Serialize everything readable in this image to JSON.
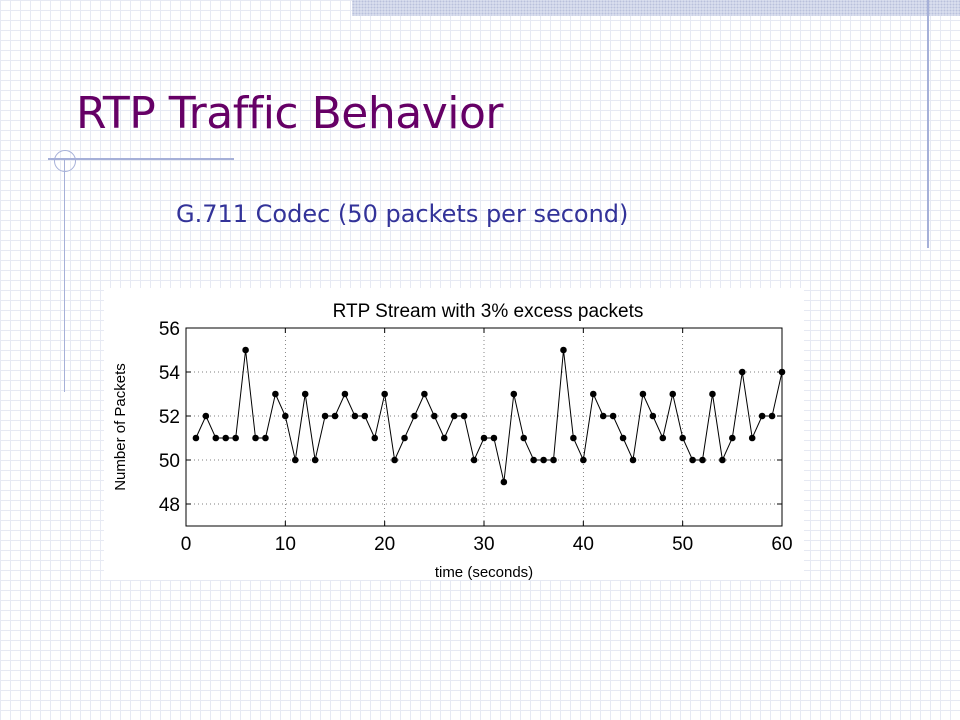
{
  "slide": {
    "title": "RTP Traffic Behavior",
    "subtitle": "G.711 Codec (50 packets per second)"
  },
  "colors": {
    "title": "#660066",
    "subtitle": "#333399",
    "decoration": "#a6b0d8",
    "grid_pattern": "#e6e9f3"
  },
  "chart_data": {
    "type": "line",
    "title": "RTP Stream with 3% excess packets",
    "xlabel": "time (seconds)",
    "ylabel": "Number of Packets",
    "xlim": [
      0,
      60
    ],
    "ylim": [
      47,
      56
    ],
    "xticks": [
      0,
      10,
      20,
      30,
      40,
      50,
      60
    ],
    "yticks": [
      48,
      50,
      52,
      54,
      56
    ],
    "grid": true,
    "legend": "none",
    "series": [
      {
        "marker": "circle",
        "color": "#000000",
        "x": [
          1,
          2,
          3,
          4,
          5,
          6,
          7,
          8,
          9,
          10,
          11,
          12,
          13,
          14,
          15,
          16,
          17,
          18,
          19,
          20,
          21,
          22,
          23,
          24,
          25,
          26,
          27,
          28,
          29,
          30,
          31,
          32,
          33,
          34,
          35,
          36,
          37,
          38,
          39,
          40,
          41,
          42,
          43,
          44,
          45,
          46,
          47,
          48,
          49,
          50,
          51,
          52,
          53,
          54,
          55,
          56,
          57,
          58,
          59,
          60
        ],
        "y": [
          51,
          52,
          51,
          51,
          51,
          55,
          51,
          51,
          53,
          52,
          50,
          53,
          50,
          52,
          52,
          53,
          52,
          52,
          51,
          53,
          50,
          51,
          52,
          53,
          52,
          51,
          52,
          52,
          50,
          51,
          51,
          49,
          53,
          51,
          50,
          50,
          50,
          55,
          51,
          50,
          53,
          52,
          52,
          51,
          50,
          53,
          52,
          51,
          53,
          51,
          50,
          50,
          53,
          50,
          51,
          54,
          51,
          52,
          52,
          54
        ]
      }
    ]
  }
}
